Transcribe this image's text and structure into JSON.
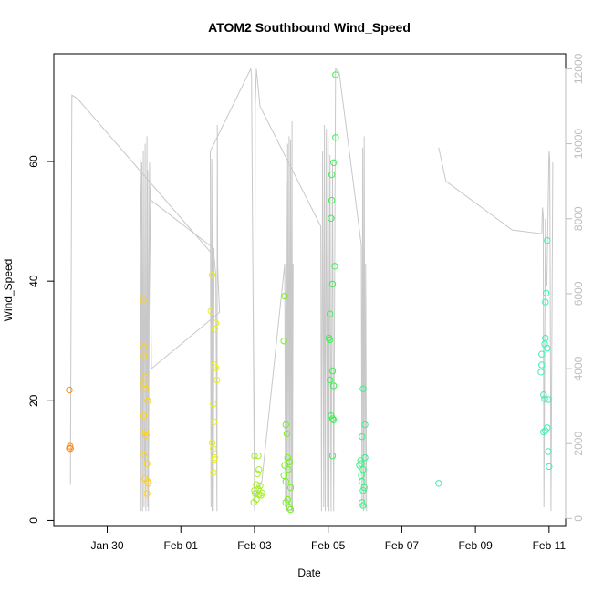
{
  "chart_data": {
    "type": "scatter",
    "title": "ATOM2 Southbound Wind_Speed",
    "xlabel": "Date",
    "ylabel": "Wind_Speed",
    "x_ticks": [
      "Jan 30",
      "Feb 01",
      "Feb 03",
      "Feb 05",
      "Feb 07",
      "Feb 09",
      "Feb 11"
    ],
    "x_tick_positions": [
      1.0,
      3.0,
      5.0,
      7.0,
      9.0,
      11.0,
      13.0
    ],
    "xlim": [
      -0.45,
      13.45
    ],
    "ylim": [
      -1,
      78
    ],
    "y_ticks": [
      0,
      20,
      40,
      60
    ],
    "y2_ticks": [
      0,
      2000,
      4000,
      6000,
      8000,
      10000,
      12000
    ],
    "y2lim": [
      -210,
      12400
    ],
    "colors": {
      "axis": "#000000",
      "secondary_axis": "#bdbdbd",
      "line": "#c8c8c8"
    },
    "grid": false,
    "legend": "none",
    "series": [
      {
        "type": "scatter",
        "points": [
          [
            -0.03,
            21.8,
            "#ff8c1a"
          ],
          [
            -0.03,
            12.1,
            "#ff8c1a"
          ],
          [
            -0.01,
            12.4,
            "#ff8c1a"
          ],
          [
            0.0,
            12.0,
            "#ff8c1a"
          ],
          [
            1.98,
            36.8,
            "#ffd21a"
          ],
          [
            2.0,
            29.0,
            "#ffd21a"
          ],
          [
            2.0,
            27.5,
            "#ffd21a"
          ],
          [
            2.02,
            24.0,
            "#ffd21a"
          ],
          [
            1.98,
            22.8,
            "#ffd21a"
          ],
          [
            2.05,
            22.0,
            "#ffd21a"
          ],
          [
            2.1,
            20.0,
            "#ffd21a"
          ],
          [
            1.99,
            17.5,
            "#ffd21a"
          ],
          [
            2.04,
            14.8,
            "#ffd21a"
          ],
          [
            2.06,
            14.2,
            "#ffd21a"
          ],
          [
            2.0,
            11.0,
            "#ffd21a"
          ],
          [
            2.08,
            9.5,
            "#ffd21a"
          ],
          [
            2.02,
            7.0,
            "#ffd21a"
          ],
          [
            2.1,
            6.5,
            "#ffd21a"
          ],
          [
            2.12,
            6.2,
            "#ffd21a"
          ],
          [
            2.08,
            4.5,
            "#ffd21a"
          ],
          [
            3.85,
            41.0,
            "#e6ef20"
          ],
          [
            3.82,
            35.0,
            "#e6ef20"
          ],
          [
            3.95,
            33.0,
            "#e6ef20"
          ],
          [
            3.92,
            32.0,
            "#e6ef20"
          ],
          [
            3.9,
            26.0,
            "#e6ef20"
          ],
          [
            3.95,
            25.5,
            "#e6ef20"
          ],
          [
            3.98,
            23.5,
            "#e6ef20"
          ],
          [
            3.88,
            19.5,
            "#e6ef20"
          ],
          [
            3.9,
            16.5,
            "#e6ef20"
          ],
          [
            3.85,
            13.0,
            "#e6ef20"
          ],
          [
            3.88,
            12.0,
            "#e6ef20"
          ],
          [
            3.92,
            10.5,
            "#e6ef20"
          ],
          [
            3.9,
            10.2,
            "#e6ef20"
          ],
          [
            3.88,
            8.0,
            "#e6ef20"
          ],
          [
            5.0,
            10.8,
            "#a3f020"
          ],
          [
            5.1,
            10.8,
            "#a3f020"
          ],
          [
            5.12,
            8.5,
            "#a3f020"
          ],
          [
            5.08,
            7.8,
            "#a3f020"
          ],
          [
            5.05,
            6.0,
            "#a3f020"
          ],
          [
            5.1,
            5.2,
            "#a3f020"
          ],
          [
            5.0,
            5.0,
            "#a3f020"
          ],
          [
            5.02,
            4.5,
            "#a3f020"
          ],
          [
            5.12,
            4.3,
            "#a3f020"
          ],
          [
            5.05,
            3.5,
            "#a3f020"
          ],
          [
            4.98,
            3.0,
            "#a3f020"
          ],
          [
            5.15,
            5.8,
            "#a3f020"
          ],
          [
            5.2,
            4.6,
            "#a3f020"
          ],
          [
            5.18,
            4.2,
            "#a3f020"
          ],
          [
            5.82,
            37.5,
            "#78f020"
          ],
          [
            5.8,
            30.0,
            "#78f020"
          ],
          [
            5.85,
            16.0,
            "#78f020"
          ],
          [
            5.88,
            14.5,
            "#78f020"
          ],
          [
            5.9,
            10.5,
            "#78f020"
          ],
          [
            5.82,
            9.2,
            "#78f020"
          ],
          [
            5.95,
            9.8,
            "#78f020"
          ],
          [
            5.92,
            8.5,
            "#78f020"
          ],
          [
            5.8,
            7.5,
            "#78f020"
          ],
          [
            5.85,
            6.5,
            "#78f020"
          ],
          [
            5.98,
            5.5,
            "#78f020"
          ],
          [
            5.9,
            3.5,
            "#78f020"
          ],
          [
            5.85,
            3.0,
            "#78f020"
          ],
          [
            5.95,
            2.2,
            "#78f020"
          ],
          [
            5.98,
            1.8,
            "#78f020"
          ],
          [
            7.2,
            74.5,
            "#3cf050"
          ],
          [
            7.2,
            64.0,
            "#3cf050"
          ],
          [
            7.15,
            59.8,
            "#3cf050"
          ],
          [
            7.1,
            57.8,
            "#3cf050"
          ],
          [
            7.1,
            53.5,
            "#3cf050"
          ],
          [
            7.08,
            50.5,
            "#3cf050"
          ],
          [
            7.18,
            42.5,
            "#3cf050"
          ],
          [
            7.12,
            39.5,
            "#3cf050"
          ],
          [
            7.05,
            34.5,
            "#3cf050"
          ],
          [
            7.02,
            30.5,
            "#3cf050"
          ],
          [
            7.05,
            30.2,
            "#3cf050"
          ],
          [
            7.12,
            25.0,
            "#3cf050"
          ],
          [
            7.05,
            23.5,
            "#3cf050"
          ],
          [
            7.15,
            22.5,
            "#3cf050"
          ],
          [
            7.08,
            17.5,
            "#3cf050"
          ],
          [
            7.12,
            17.0,
            "#3cf050"
          ],
          [
            7.15,
            16.8,
            "#3cf050"
          ],
          [
            7.12,
            10.8,
            "#3cf050"
          ],
          [
            7.95,
            22.0,
            "#3cf084"
          ],
          [
            8.0,
            16.0,
            "#3cf084"
          ],
          [
            7.92,
            14.0,
            "#3cf084"
          ],
          [
            8.0,
            10.5,
            "#3cf084"
          ],
          [
            7.88,
            10.0,
            "#3cf084"
          ],
          [
            7.9,
            9.5,
            "#3cf084"
          ],
          [
            7.85,
            9.2,
            "#3cf084"
          ],
          [
            7.95,
            8.5,
            "#3cf084"
          ],
          [
            7.9,
            7.5,
            "#3cf084"
          ],
          [
            7.92,
            6.5,
            "#3cf084"
          ],
          [
            7.98,
            5.5,
            "#3cf084"
          ],
          [
            7.95,
            5.0,
            "#3cf084"
          ],
          [
            7.92,
            3.0,
            "#3cf084"
          ],
          [
            7.95,
            2.5,
            "#3cf084"
          ],
          [
            10.0,
            6.2,
            "#3cf0a8"
          ],
          [
            12.95,
            46.8,
            "#3cf0b8"
          ],
          [
            12.92,
            38.0,
            "#3cf0b8"
          ],
          [
            12.9,
            36.5,
            "#3cf0b8"
          ],
          [
            12.9,
            30.5,
            "#3cf0b8"
          ],
          [
            12.88,
            29.5,
            "#3cf0b8"
          ],
          [
            12.95,
            28.8,
            "#3cf0b8"
          ],
          [
            12.8,
            27.8,
            "#3cf0b8"
          ],
          [
            12.8,
            26.0,
            "#3cf0b8"
          ],
          [
            12.78,
            24.8,
            "#3cf0b8"
          ],
          [
            12.85,
            21.0,
            "#3cf0b8"
          ],
          [
            12.88,
            20.3,
            "#3cf0b8"
          ],
          [
            12.98,
            20.2,
            "#3cf0b8"
          ],
          [
            12.95,
            15.5,
            "#3cf0b8"
          ],
          [
            12.9,
            15.0,
            "#3cf0b8"
          ],
          [
            12.85,
            14.8,
            "#3cf0b8"
          ],
          [
            12.98,
            11.5,
            "#3cf0b8"
          ],
          [
            13.0,
            9.0,
            "#3cf0b8"
          ]
        ]
      },
      {
        "type": "line",
        "axis": "right",
        "segments": [
          [
            [
              0.0,
              900
            ],
            [
              0.04,
              11300
            ],
            [
              0.2,
              11200
            ],
            [
              3.9,
              7000
            ],
            [
              3.95,
              6500
            ],
            [
              3.98,
              200
            ],
            [
              3.99,
              10500
            ],
            [
              4.0,
              6700
            ],
            [
              4.05,
              5500
            ],
            [
              2.2,
              4000
            ],
            [
              2.15,
              9500
            ],
            [
              2.1,
              300
            ],
            [
              2.08,
              10200
            ],
            [
              2.05,
              200
            ],
            [
              2.03,
              10000
            ],
            [
              2.0,
              300
            ],
            [
              1.98,
              9800
            ],
            [
              1.96,
              200
            ],
            [
              1.94,
              9500
            ],
            [
              1.92,
              200
            ],
            [
              1.9,
              9600
            ],
            [
              2.05,
              300
            ],
            [
              2.1,
              9300
            ],
            [
              2.12,
              200
            ],
            [
              2.15,
              9000
            ],
            [
              2.18,
              8500
            ],
            [
              3.9,
              7200
            ],
            [
              3.88,
              200
            ],
            [
              3.87,
              9500
            ],
            [
              3.85,
              200
            ],
            [
              3.84,
              9600
            ],
            [
              3.82,
              300
            ],
            [
              3.8,
              9800
            ],
            [
              4.9,
              12000
            ],
            [
              4.92,
              11800
            ],
            [
              5.0,
              200
            ],
            [
              5.02,
              11000
            ],
            [
              5.05,
              12000
            ],
            [
              5.1,
              11500
            ],
            [
              5.15,
              11000
            ],
            [
              6.8,
              7800
            ],
            [
              6.82,
              200
            ],
            [
              6.85,
              9800
            ],
            [
              6.88,
              300
            ],
            [
              6.9,
              10500
            ],
            [
              6.92,
              200
            ],
            [
              6.95,
              10400
            ],
            [
              6.98,
              300
            ],
            [
              7.0,
              10200
            ],
            [
              7.02,
              200
            ],
            [
              7.05,
              9700
            ],
            [
              7.08,
              200
            ],
            [
              7.12,
              9500
            ],
            [
              7.15,
              200
            ],
            [
              7.2,
              12000
            ],
            [
              7.3,
              11900
            ],
            [
              7.9,
              7300
            ],
            [
              7.92,
              300
            ],
            [
              7.94,
              9900
            ],
            [
              7.96,
              200
            ],
            [
              7.98,
              10200
            ],
            [
              8.0,
              300
            ],
            [
              8.02,
              6800
            ],
            [
              8.04,
              200
            ]
          ],
          [
            [
              5.0,
              500
            ],
            [
              5.2,
              1000
            ],
            [
              5.82,
              6800
            ],
            [
              5.84,
              300
            ],
            [
              5.86,
              9000
            ],
            [
              5.88,
              200
            ],
            [
              5.9,
              10000
            ],
            [
              5.92,
              200
            ],
            [
              5.94,
              10200
            ],
            [
              5.96,
              300
            ],
            [
              5.98,
              10100
            ],
            [
              6.0,
              200
            ],
            [
              6.02,
              10600
            ],
            [
              6.03,
              200
            ],
            [
              6.05,
              6800
            ]
          ],
          [
            [
              10.0,
              9900
            ],
            [
              10.2,
              9000
            ],
            [
              12.0,
              7700
            ],
            [
              12.8,
              7600
            ],
            [
              12.82,
              8300
            ],
            [
              12.84,
              8100
            ],
            [
              12.86,
              300
            ],
            [
              12.9,
              8000
            ],
            [
              12.92,
              6500
            ],
            [
              12.94,
              6200
            ],
            [
              13.0,
              9800
            ],
            [
              13.02,
              9600
            ],
            [
              13.05,
              200
            ],
            [
              13.1,
              9500
            ]
          ]
        ]
      }
    ]
  }
}
